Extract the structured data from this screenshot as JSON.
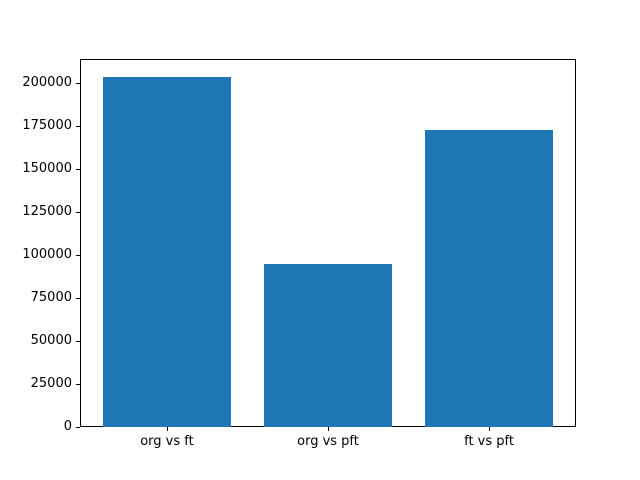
{
  "figure": {
    "background": "#ffffff",
    "bar_color": "#1f77b4",
    "spine_color": "#000000"
  },
  "chart_data": {
    "type": "bar",
    "categories": [
      "org vs ft",
      "org vs pft",
      "ft vs pft"
    ],
    "values": [
      204000,
      95000,
      173000
    ],
    "title": "",
    "xlabel": "",
    "ylabel": "",
    "ylim": [
      0,
      214200
    ],
    "xlim": [
      -0.54,
      2.54
    ],
    "bar_width": 0.8,
    "yticks": [
      0,
      25000,
      50000,
      75000,
      100000,
      125000,
      150000,
      175000,
      200000
    ],
    "grid": false,
    "legend": null
  }
}
